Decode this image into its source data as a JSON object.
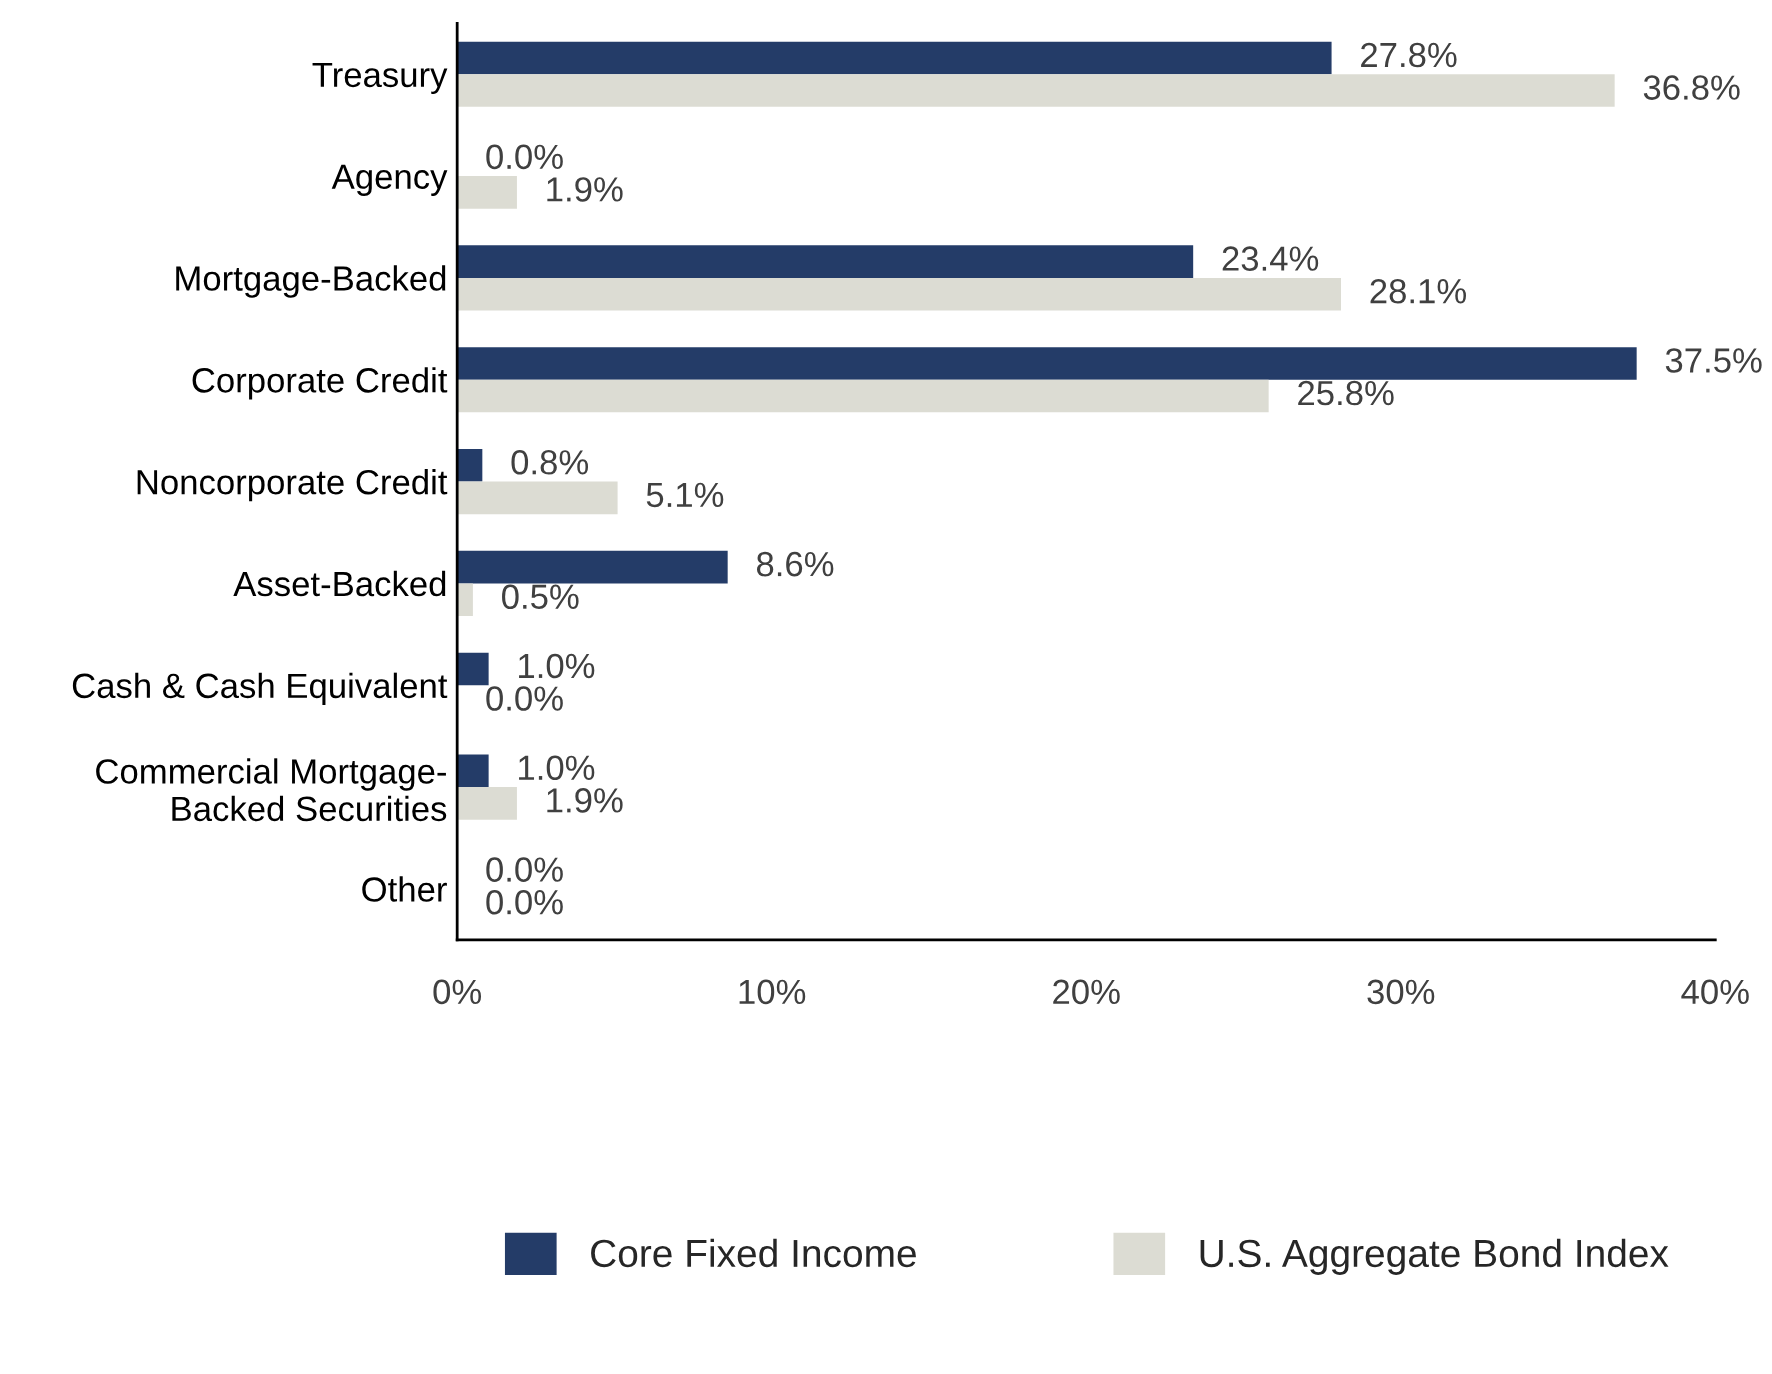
{
  "chart_data": {
    "type": "bar",
    "orientation": "horizontal",
    "categories": [
      "Treasury",
      "Agency",
      "Mortgage-Backed",
      "Corporate Credit",
      "Noncorporate Credit",
      "Asset-Backed",
      "Cash & Cash Equivalent",
      "Commercial Mortgage-\nBacked Securities",
      "Other"
    ],
    "series": [
      {
        "name": "Core Fixed Income",
        "color": "#243c68",
        "values": [
          27.8,
          0.0,
          23.4,
          37.5,
          0.8,
          8.6,
          1.0,
          1.0,
          0.0
        ],
        "value_labels": [
          "27.8%",
          "0.0%",
          "23.4%",
          "37.5%",
          "0.8%",
          "8.6%",
          "1.0%",
          "1.0%",
          "0.0%"
        ]
      },
      {
        "name": "U.S. Aggregate Bond Index",
        "color": "#dcdcd3",
        "values": [
          36.8,
          1.9,
          28.1,
          25.8,
          5.1,
          0.5,
          0.0,
          1.9,
          0.0
        ],
        "value_labels": [
          "36.8%",
          "1.9%",
          "28.1%",
          "25.8%",
          "5.1%",
          "0.5%",
          "0.0%",
          "1.9%",
          "0.0%"
        ]
      }
    ],
    "xlim": [
      0,
      40
    ],
    "xticks": [
      {
        "value": 0,
        "label": "0%"
      },
      {
        "value": 10,
        "label": "10%"
      },
      {
        "value": 20,
        "label": "20%"
      },
      {
        "value": 30,
        "label": "30%"
      },
      {
        "value": 40,
        "label": "40%"
      }
    ],
    "grid": false,
    "legend": "bottom"
  }
}
